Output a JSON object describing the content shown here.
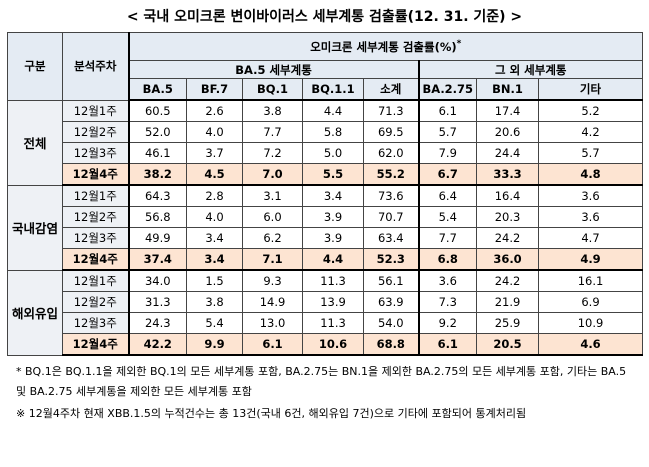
{
  "title": "< 국내 오미크론 변이바이러스 세부계통 검출률(12. 31. 기준) >",
  "table": {
    "header": {
      "group_label": "구분",
      "week_label": "분석주차",
      "main": "오미크론 세부계통 검출률(%)",
      "main_mark": "*",
      "sub": [
        "BA.5 세부계통",
        "그 외 세부계통"
      ],
      "columns": [
        "BA.5",
        "BF.7",
        "BQ.1",
        "BQ.1.1",
        "소계",
        "BA.2.75",
        "BN.1",
        "기타"
      ]
    },
    "groups": [
      {
        "name": "전체",
        "rows": [
          {
            "week": "12월1주",
            "values": [
              "60.5",
              "2.6",
              "3.8",
              "4.4",
              "71.3",
              "6.1",
              "17.4",
              "5.2"
            ]
          },
          {
            "week": "12월2주",
            "values": [
              "52.0",
              "4.0",
              "7.7",
              "5.8",
              "69.5",
              "5.7",
              "20.6",
              "4.2"
            ]
          },
          {
            "week": "12월3주",
            "values": [
              "46.1",
              "3.7",
              "7.2",
              "5.0",
              "62.0",
              "7.9",
              "24.4",
              "5.7"
            ]
          },
          {
            "week": "12월4주",
            "values": [
              "38.2",
              "4.5",
              "7.0",
              "5.5",
              "55.2",
              "6.7",
              "33.3",
              "4.8"
            ]
          }
        ]
      },
      {
        "name": "국내감염",
        "rows": [
          {
            "week": "12월1주",
            "values": [
              "64.3",
              "2.8",
              "3.1",
              "3.4",
              "73.6",
              "6.4",
              "16.4",
              "3.6"
            ]
          },
          {
            "week": "12월2주",
            "values": [
              "56.8",
              "4.0",
              "6.0",
              "3.9",
              "70.7",
              "5.4",
              "20.3",
              "3.6"
            ]
          },
          {
            "week": "12월3주",
            "values": [
              "49.9",
              "3.4",
              "6.2",
              "3.9",
              "63.4",
              "7.7",
              "24.2",
              "4.7"
            ]
          },
          {
            "week": "12월4주",
            "values": [
              "37.4",
              "3.4",
              "7.1",
              "4.4",
              "52.3",
              "6.8",
              "36.0",
              "4.9"
            ]
          }
        ]
      },
      {
        "name": "해외유입",
        "rows": [
          {
            "week": "12월1주",
            "values": [
              "34.0",
              "1.5",
              "9.3",
              "11.3",
              "56.1",
              "3.6",
              "24.2",
              "16.1"
            ]
          },
          {
            "week": "12월2주",
            "values": [
              "31.3",
              "3.8",
              "14.9",
              "13.9",
              "63.9",
              "7.3",
              "21.9",
              "6.9"
            ]
          },
          {
            "week": "12월3주",
            "values": [
              "24.3",
              "5.4",
              "13.0",
              "11.3",
              "54.0",
              "9.2",
              "25.9",
              "10.9"
            ]
          },
          {
            "week": "12월4주",
            "values": [
              "42.2",
              "9.9",
              "6.1",
              "10.6",
              "68.8",
              "6.1",
              "20.5",
              "4.6"
            ]
          }
        ]
      }
    ]
  },
  "notes": [
    "* BQ.1은 BQ.1.1을 제외한 BQ.1의 모든 세부계통 포함, BA.2.75는 BN.1을 제외한 BA.2.75의 모든 세부계통 포함, 기타는 BA.5 및 BA.2.75 세부계통을 제외한 모든 세부계통 포함",
    "※ 12월4주차 현재 XBB.1.5의 누적건수는 총 13건(국내 6건, 해외유입 7건)으로 기타에 포함되어 통계처리됨"
  ]
}
